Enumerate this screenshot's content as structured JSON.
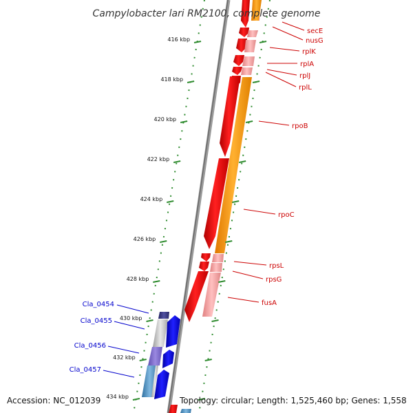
{
  "title": "Campylobacter lari RM2100, complete genome",
  "footer": {
    "accession": "Accession: NC_012039",
    "summary": "Topology: circular; Length: 1,525,460 bp; Genes: 1,558"
  },
  "colors": {
    "backbone": "#8a8a8a",
    "tick": "#2e8b2e",
    "red_strand": "#ff0000",
    "red_light": "#f4a0a0",
    "orange": "#ff9a00",
    "blue": "#0000ee",
    "label_red": "#cc0000",
    "label_blue": "#0000cc"
  },
  "ticks": [
    {
      "label": "416 kbp"
    },
    {
      "label": "418 kbp"
    },
    {
      "label": "420 kbp"
    },
    {
      "label": "422 kbp"
    },
    {
      "label": "424 kbp"
    },
    {
      "label": "426 kbp"
    },
    {
      "label": "428 kbp"
    },
    {
      "label": "430 kbp"
    },
    {
      "label": "432 kbp"
    },
    {
      "label": "434 kbp"
    }
  ],
  "red_labels": [
    "secE",
    "nusG",
    "rplK",
    "rplA",
    "rplJ",
    "rplL",
    "rpoB",
    "rpoC",
    "rpsL",
    "rpsG",
    "fusA"
  ],
  "blue_labels": [
    "Cla_0454",
    "Cla_0455",
    "Cla_0456",
    "Cla_0457"
  ]
}
